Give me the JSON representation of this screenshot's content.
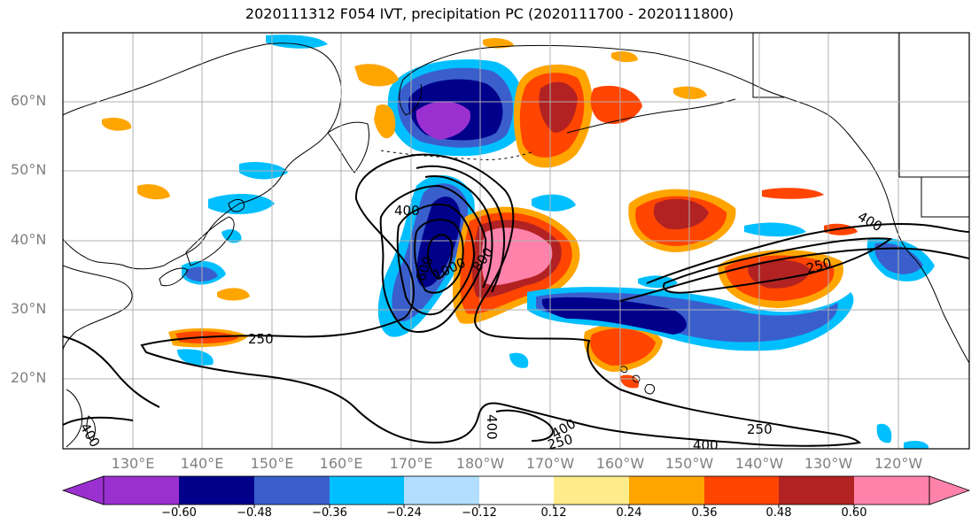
{
  "title": "2020111312 F054 IVT, precipitation PC (2020111700 - 2020111800)",
  "map": {
    "lat_labels": [
      "60°N",
      "50°N",
      "40°N",
      "30°N",
      "20°N"
    ],
    "lon_labels": [
      "130°E",
      "140°E",
      "150°E",
      "160°E",
      "170°E",
      "180°W",
      "170°W",
      "160°W",
      "150°W",
      "140°W",
      "130°W",
      "120°W"
    ],
    "contour_labels": [
      "400",
      "600",
      "1000",
      "800",
      "250",
      "250",
      "400",
      "400",
      "400",
      "250",
      "250",
      "400",
      "400",
      "400",
      "600"
    ],
    "grid": true
  },
  "colorbar": {
    "ticks": [
      "−0.60",
      "−0.48",
      "−0.36",
      "−0.24",
      "−0.12",
      "0.12",
      "0.24",
      "0.36",
      "0.48",
      "0.60"
    ],
    "colors": [
      "#9b30d0",
      "#00008b",
      "#3a5fcd",
      "#00bfff",
      "#b2dfff",
      "#ffffff",
      "#ffec8b",
      "#ffa500",
      "#ff4500",
      "#b22222",
      "#ff82ab"
    ]
  }
}
